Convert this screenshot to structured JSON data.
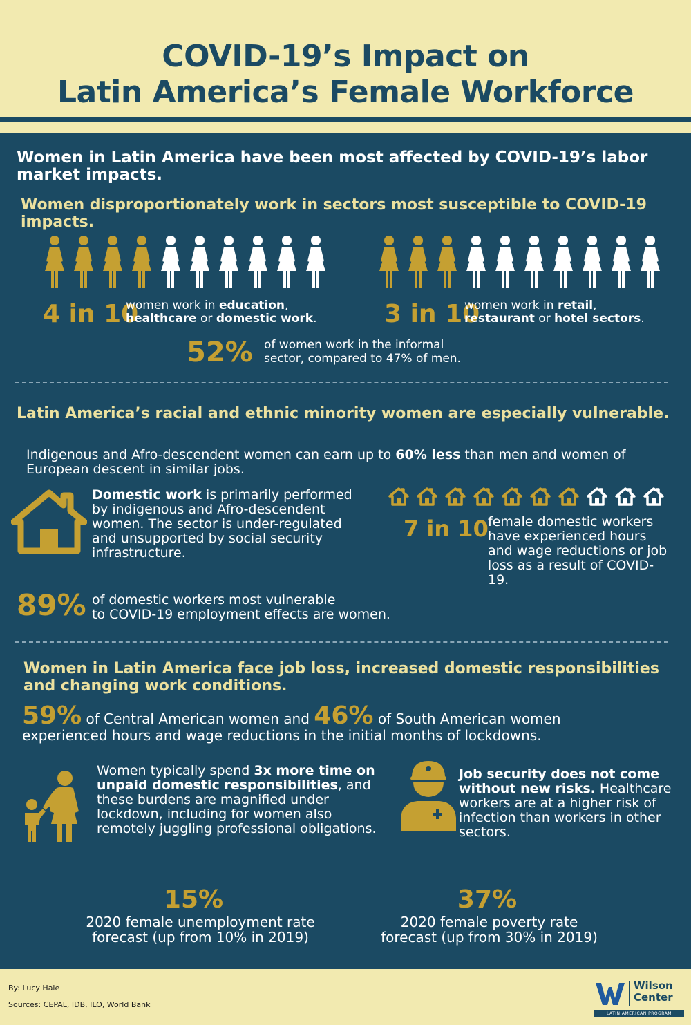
{
  "header": {
    "title_line1": "COVID-19’s Impact on",
    "title_line2": "Latin America’s Female Workforce"
  },
  "section1": {
    "heading": "Women in Latin America have been most affected by COVID-19’s labor market impacts.",
    "subheading": "Women disproportionately work in sectors most susceptible to COVID-19 impacts.",
    "stat_a": {
      "value": "4 in 10",
      "text_pre": "women work in ",
      "b1": "education",
      "mid1": ",",
      "b2": "healthcare",
      "mid2": " or ",
      "b3": "domestic work",
      "end": ".",
      "filled": 4,
      "total": 10
    },
    "stat_b": {
      "value": "3 in 10",
      "text_pre": "women work in ",
      "b1": "retail",
      "mid1": ",",
      "b2": "restaurant",
      "mid2": " or ",
      "b3": "hotel sectors",
      "end": ".",
      "filled": 3,
      "total": 10
    },
    "informal": {
      "value": "52%",
      "line1": "of women work in the informal",
      "line2": "sector, compared to 47% of men."
    }
  },
  "section2": {
    "heading": "Latin America’s racial and ethnic minority women are especially vulnerable.",
    "intro_pre": "Indigenous and Afro-descendent women can earn up to ",
    "intro_bold": "60% less",
    "intro_post": " than men and women of European descent in similar jobs.",
    "domestic_bold": "Domestic work",
    "domestic_text": " is primarily performed by indigenous and Afro-descendent women. The sector is under-regulated and unsupported by social security infrastructure.",
    "houses": {
      "filled": 7,
      "total": 10
    },
    "seven_value": "7 in 10",
    "seven_text": "female domestic workers have experienced hours and wage reductions or job loss as a result of COVID-19.",
    "stat89": {
      "value": "89%",
      "line1": "of domestic workers most vulnerable",
      "line2": "to COVID-19 employment effects are women."
    }
  },
  "section3": {
    "heading": "Women in Latin America face job loss, increased domestic responsibilities and changing work conditions.",
    "v59": "59%",
    "t59": "of Central American women and",
    "v46": "46%",
    "t46": "of South American women",
    "line2": "experienced hours and wage reductions in the initial months of lockdowns.",
    "unpaid_pre": "Women typically spend ",
    "unpaid_bold": "3x more time on unpaid domestic responsibilities",
    "unpaid_post": ", and these burdens are magnified under lockdown, including for women also remotely juggling professional obligations.",
    "health_bold": "Job security does not come without new risks.",
    "health_text": " Healthcare workers are at a higher risk of infection than workers in other sectors.",
    "unemp": {
      "value": "15%",
      "line1": "2020 female unemployment rate",
      "line2": "forecast (up from 10% in 2019)"
    },
    "poverty": {
      "value": "37%",
      "line1": "2020 female poverty rate",
      "line2": "forecast (up from 30% in 2019)"
    }
  },
  "footer": {
    "by": "By: Lucy Hale",
    "sources": "Sources: CEPAL, IDB, ILO, World Bank",
    "logo_line1": "Wilson",
    "logo_line2": "Center",
    "logo_sub": "LATIN AMERICAN PROGRAM"
  },
  "colors": {
    "navy": "#1b4a63",
    "gold": "#c5a032",
    "cream": "#f2eab0",
    "pale_yellow": "#ece19f",
    "white": "#ffffff"
  },
  "icons": [
    "woman-icon",
    "house-icon",
    "mother-child-icon",
    "healthcare-worker-icon",
    "wilson-center-logo"
  ]
}
